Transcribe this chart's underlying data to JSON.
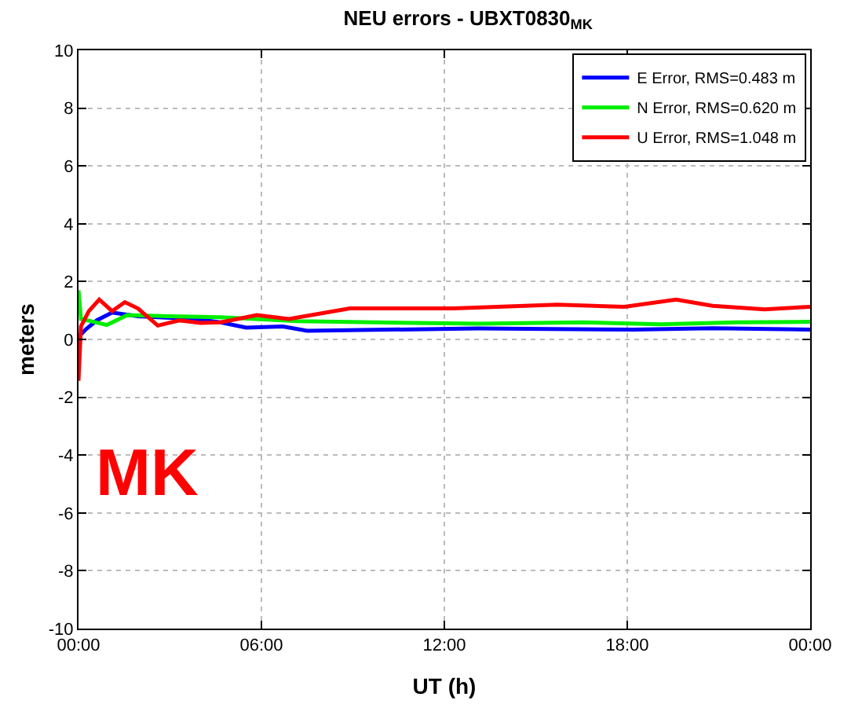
{
  "chart_data": {
    "type": "line",
    "title": "NEU errors - UBXT0830$_{MK}$",
    "xlabel": "UT (h)",
    "ylabel": "meters",
    "xlim": [
      0,
      24
    ],
    "xticks": [
      {
        "value": 0,
        "label": "00:00"
      },
      {
        "value": 6,
        "label": "06:00"
      },
      {
        "value": 12,
        "label": "12:00"
      },
      {
        "value": 18,
        "label": "18:00"
      },
      {
        "value": 24,
        "label": "00:00"
      }
    ],
    "ylim": [
      -10,
      10
    ],
    "yticks": [
      -10,
      -8,
      -6,
      -4,
      -2,
      0,
      2,
      4,
      6,
      8,
      10
    ],
    "grid": true,
    "legend": "top right",
    "marker": "none",
    "line_style": "solid",
    "annotations": [
      "MK"
    ],
    "series": [
      {
        "name": "E Error, RMS=0.483 m",
        "color": "#0000ff",
        "x": [
          0,
          0.25,
          0.6,
          1.1,
          1.95,
          3.8,
          4.66,
          5.5,
          6.7,
          7.5,
          13.1,
          18.2,
          20.8,
          24
        ],
        "values": [
          0.09,
          0.36,
          0.66,
          0.93,
          0.8,
          0.71,
          0.59,
          0.41,
          0.45,
          0.3,
          0.38,
          0.34,
          0.39,
          0.34
        ]
      },
      {
        "name": "N Error, RMS=0.620 m",
        "color": "#00ee00",
        "x": [
          0,
          0.08,
          0.42,
          0.93,
          1.6,
          2.97,
          4.66,
          7.2,
          13.1,
          16.5,
          19.1,
          21.6,
          24
        ],
        "values": [
          1.7,
          0.71,
          0.63,
          0.5,
          0.84,
          0.8,
          0.77,
          0.63,
          0.54,
          0.59,
          0.52,
          0.59,
          0.61
        ]
      },
      {
        "name": "U Error, RMS=1.048 m",
        "color": "#ff0000",
        "x": [
          0,
          0.08,
          0.34,
          0.68,
          1.1,
          1.52,
          1.95,
          2.6,
          3.3,
          4.0,
          4.66,
          5.85,
          6.9,
          8.9,
          12.3,
          15.7,
          17.9,
          19.6,
          20.8,
          22.5,
          24
        ],
        "values": [
          -1.43,
          0.45,
          0.98,
          1.38,
          0.98,
          1.29,
          1.07,
          0.48,
          0.66,
          0.57,
          0.59,
          0.84,
          0.71,
          1.07,
          1.07,
          1.2,
          1.13,
          1.38,
          1.16,
          1.04,
          1.13
        ]
      }
    ]
  }
}
